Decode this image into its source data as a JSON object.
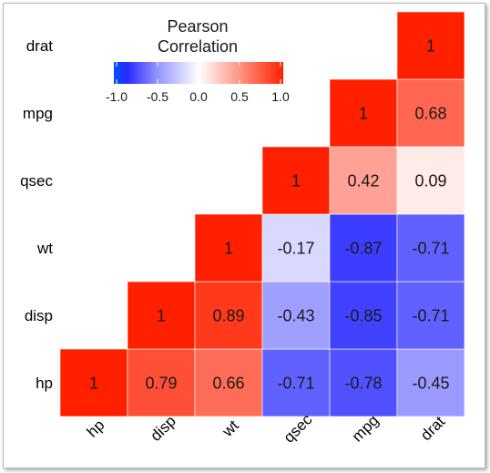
{
  "chart_data": {
    "type": "heatmap",
    "title": "",
    "x_categories": [
      "hp",
      "disp",
      "wt",
      "qsec",
      "mpg",
      "drat"
    ],
    "y_categories": [
      "hp",
      "disp",
      "wt",
      "qsec",
      "mpg",
      "drat"
    ],
    "cells": [
      {
        "x": "hp",
        "y": "hp",
        "value": 1,
        "label": "1"
      },
      {
        "x": "disp",
        "y": "hp",
        "value": 0.79,
        "label": "0.79"
      },
      {
        "x": "wt",
        "y": "hp",
        "value": 0.66,
        "label": "0.66"
      },
      {
        "x": "qsec",
        "y": "hp",
        "value": -0.71,
        "label": "-0.71"
      },
      {
        "x": "mpg",
        "y": "hp",
        "value": -0.78,
        "label": "-0.78"
      },
      {
        "x": "drat",
        "y": "hp",
        "value": -0.45,
        "label": "-0.45"
      },
      {
        "x": "disp",
        "y": "disp",
        "value": 1,
        "label": "1"
      },
      {
        "x": "wt",
        "y": "disp",
        "value": 0.89,
        "label": "0.89"
      },
      {
        "x": "qsec",
        "y": "disp",
        "value": -0.43,
        "label": "-0.43"
      },
      {
        "x": "mpg",
        "y": "disp",
        "value": -0.85,
        "label": "-0.85"
      },
      {
        "x": "drat",
        "y": "disp",
        "value": -0.71,
        "label": "-0.71"
      },
      {
        "x": "wt",
        "y": "wt",
        "value": 1,
        "label": "1"
      },
      {
        "x": "qsec",
        "y": "wt",
        "value": -0.17,
        "label": "-0.17"
      },
      {
        "x": "mpg",
        "y": "wt",
        "value": -0.87,
        "label": "-0.87"
      },
      {
        "x": "drat",
        "y": "wt",
        "value": -0.71,
        "label": "-0.71"
      },
      {
        "x": "qsec",
        "y": "qsec",
        "value": 1,
        "label": "1"
      },
      {
        "x": "mpg",
        "y": "qsec",
        "value": 0.42,
        "label": "0.42"
      },
      {
        "x": "drat",
        "y": "qsec",
        "value": 0.09,
        "label": "0.09"
      },
      {
        "x": "mpg",
        "y": "mpg",
        "value": 1,
        "label": "1"
      },
      {
        "x": "drat",
        "y": "mpg",
        "value": 0.68,
        "label": "0.68"
      },
      {
        "x": "drat",
        "y": "drat",
        "value": 1,
        "label": "1"
      }
    ],
    "legend": {
      "title_lines": [
        "Pearson",
        "Correlation"
      ],
      "range": [
        -1,
        1
      ],
      "ticks": [
        {
          "value": -1.0,
          "label": "-1.0"
        },
        {
          "value": -0.5,
          "label": "-0.5"
        },
        {
          "value": 0.0,
          "label": "0.0"
        },
        {
          "value": 0.5,
          "label": "0.5"
        },
        {
          "value": 1.0,
          "label": "1.0"
        }
      ],
      "placement": "top-left"
    },
    "colors": {
      "low": "#2020ff",
      "mid": "#ffffff",
      "high": "#ff2000",
      "bar_low_end": "#0050ff"
    },
    "grid": false
  }
}
